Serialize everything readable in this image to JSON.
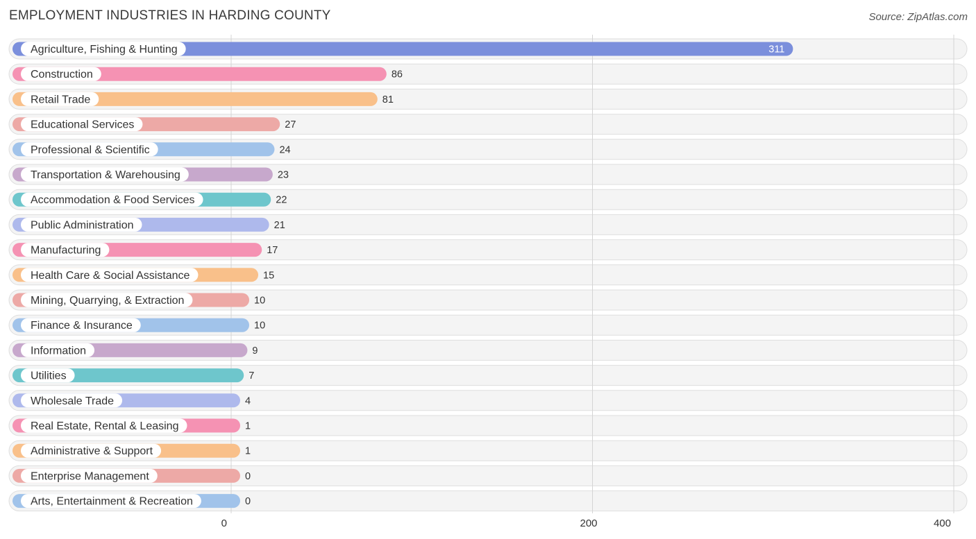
{
  "title": "EMPLOYMENT INDUSTRIES IN HARDING COUNTY",
  "source": "Source: ZipAtlas.com",
  "chart_data": {
    "type": "bar",
    "orientation": "horizontal",
    "title": "EMPLOYMENT INDUSTRIES IN HARDING COUNTY",
    "xlim": [
      0,
      400
    ],
    "x_ticks": [
      0,
      200,
      400
    ],
    "grid": true,
    "categories": [
      "Agriculture, Fishing & Hunting",
      "Construction",
      "Retail Trade",
      "Educational Services",
      "Professional & Scientific",
      "Transportation & Warehousing",
      "Accommodation & Food Services",
      "Public Administration",
      "Manufacturing",
      "Health Care & Social Assistance",
      "Mining, Quarrying, & Extraction",
      "Finance & Insurance",
      "Information",
      "Utilities",
      "Wholesale Trade",
      "Real Estate, Rental & Leasing",
      "Administrative & Support",
      "Enterprise Management",
      "Arts, Entertainment & Recreation"
    ],
    "values": [
      311,
      86,
      81,
      27,
      24,
      23,
      22,
      21,
      17,
      15,
      10,
      10,
      9,
      7,
      4,
      1,
      1,
      0,
      0
    ],
    "colors": [
      "#7b8fdc",
      "#f592b3",
      "#f9c08a",
      "#eda9a6",
      "#a1c3ea",
      "#c7a8cc",
      "#6ec6cc",
      "#aeb9ec",
      "#f592b3",
      "#f9c08a",
      "#eda9a6",
      "#a1c3ea",
      "#c7a8cc",
      "#6ec6cc",
      "#aeb9ec",
      "#f592b3",
      "#f9c08a",
      "#eda9a6",
      "#a1c3ea"
    ]
  }
}
